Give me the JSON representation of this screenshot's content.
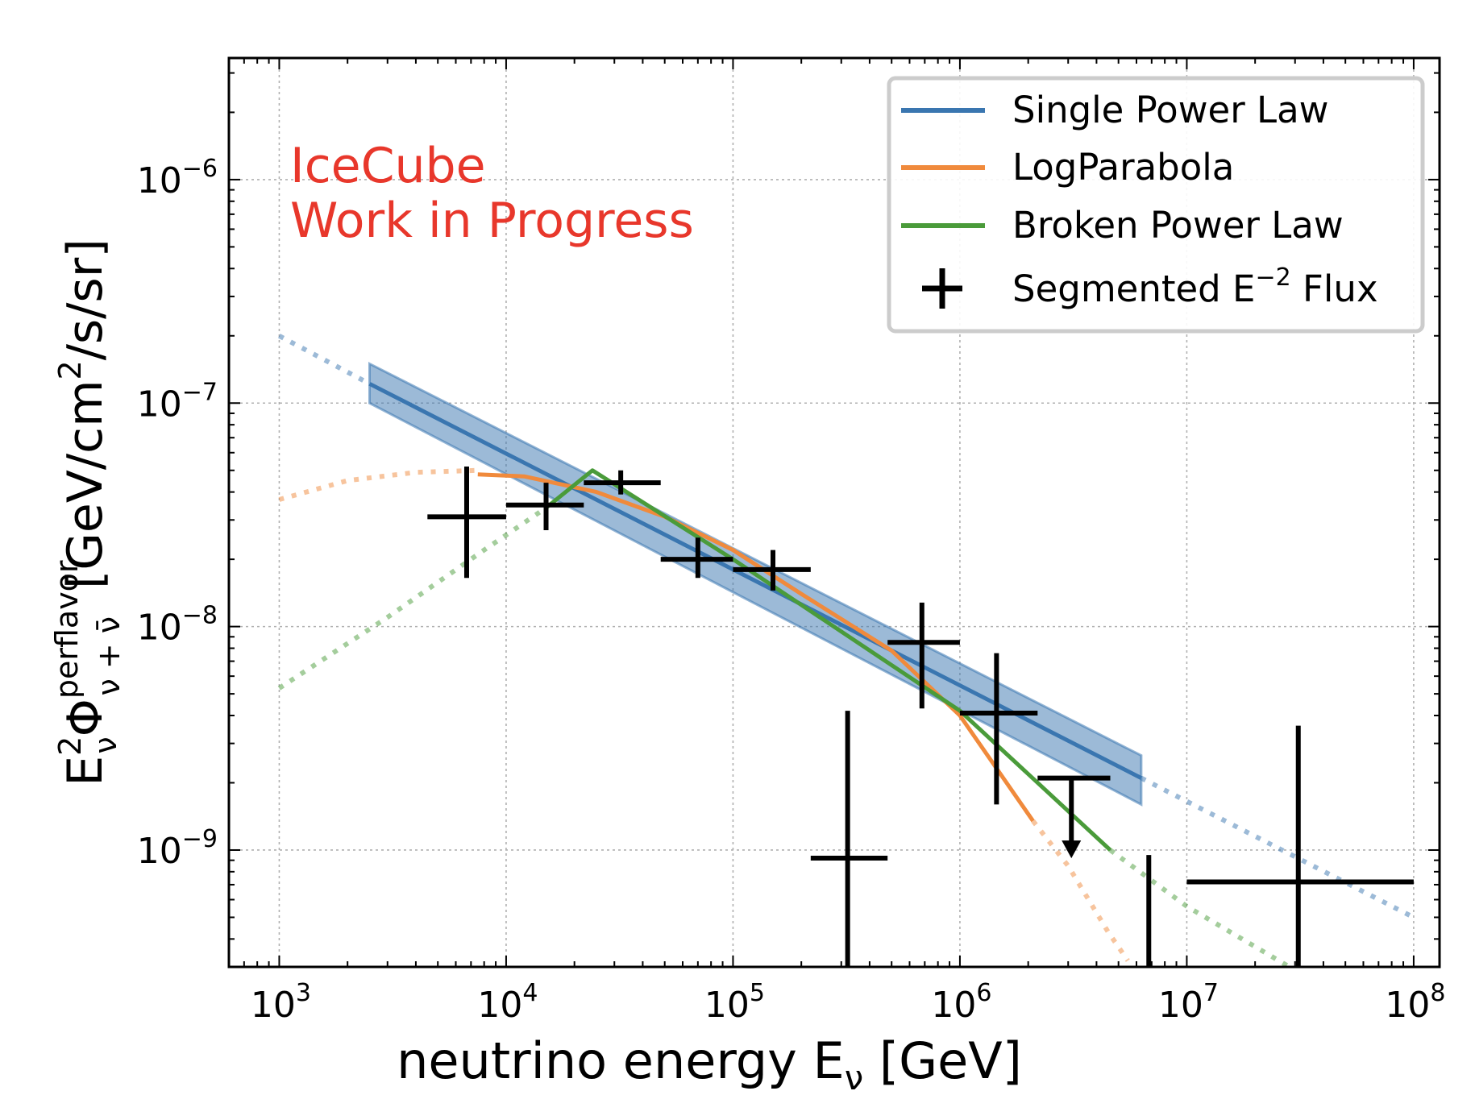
{
  "chart_data": {
    "type": "line",
    "xscale": "log",
    "yscale": "log",
    "xlim": [
      600,
      130000000
    ],
    "ylim": [
      3e-10,
      3.5e-06
    ],
    "grid": true,
    "xlabel_main": "neutrino energy E",
    "xlabel_sub": "ν",
    "xlabel_unit": "[GeV]",
    "ylabel_parts": {
      "e": "E",
      "e_sup": "2",
      "e_sub": "ν",
      "phi": "Φ",
      "phi_sup": "perflavor",
      "phi_sub": "ν + ν̄",
      "unit_a": "[GeV/cm",
      "unit_sup": "2",
      "unit_b": "/s/sr]"
    },
    "xticks": [
      {
        "value": 1000,
        "base": "10",
        "exp": "3"
      },
      {
        "value": 10000,
        "base": "10",
        "exp": "4"
      },
      {
        "value": 100000,
        "base": "10",
        "exp": "5"
      },
      {
        "value": 1000000,
        "base": "10",
        "exp": "6"
      },
      {
        "value": 10000000,
        "base": "10",
        "exp": "7"
      },
      {
        "value": 100000000,
        "base": "10",
        "exp": "8"
      }
    ],
    "yticks": [
      {
        "value": 1e-09,
        "base": "10",
        "exp": "−9"
      },
      {
        "value": 1e-08,
        "base": "10",
        "exp": "−8"
      },
      {
        "value": 1e-07,
        "base": "10",
        "exp": "−7"
      },
      {
        "value": 1e-06,
        "base": "10",
        "exp": "−6"
      }
    ],
    "annotation": {
      "line1": "IceCube",
      "line2": "Work in Progress",
      "color": "#e8372b"
    },
    "legend": {
      "position": "top-right",
      "entries": [
        {
          "label": "Single Power Law",
          "color": "#3a76b0",
          "kind": "line"
        },
        {
          "label": "LogParabola",
          "color": "#f08a3c",
          "kind": "line"
        },
        {
          "label": "Broken Power Law",
          "color": "#4a9b3a",
          "kind": "line"
        },
        {
          "label": "Segmented E",
          "label_sup": "−2",
          "label_tail": " Flux",
          "color": "#000000",
          "kind": "cross"
        }
      ]
    },
    "series": [
      {
        "name": "Single Power Law",
        "color": "#3a76b0",
        "extrapolated": [
          [
            1000,
            2e-07
          ],
          [
            2500,
            1.22e-07
          ]
        ],
        "fitted": [
          [
            2500,
            1.22e-07
          ],
          [
            6300000,
            2.1e-09
          ]
        ],
        "extrapolated_high": [
          [
            6300000,
            2.1e-09
          ],
          [
            100000000,
            5e-10
          ]
        ],
        "band_upper": [
          [
            2500,
            1.5e-07
          ],
          [
            6300000,
            2.65e-09
          ]
        ],
        "band_lower": [
          [
            2500,
            1e-07
          ],
          [
            6300000,
            1.6e-09
          ]
        ]
      },
      {
        "name": "LogParabola",
        "color": "#f08a3c",
        "extrapolated": [
          [
            1000,
            3.7e-08
          ],
          [
            2000,
            4.5e-08
          ],
          [
            4000,
            4.9e-08
          ],
          [
            7500,
            5e-08
          ]
        ],
        "fitted": [
          [
            7500,
            4.8e-08
          ],
          [
            12000,
            4.7e-08
          ],
          [
            25000,
            4e-08
          ],
          [
            50000,
            3.1e-08
          ],
          [
            100000,
            2.2e-08
          ],
          [
            200000,
            1.4e-08
          ],
          [
            500000,
            7.8e-09
          ],
          [
            1000000,
            4e-09
          ],
          [
            2100000,
            1.35e-09
          ]
        ],
        "extrapolated_high": [
          [
            2100000,
            1.35e-09
          ],
          [
            3000000,
            8.5e-10
          ],
          [
            4500000,
            4.3e-10
          ],
          [
            5500000,
            3.2e-10
          ]
        ]
      },
      {
        "name": "Broken Power Law",
        "color": "#4a9b3a",
        "extrapolated": [
          [
            1000,
            5.3e-09
          ],
          [
            3000,
            1.1e-08
          ],
          [
            8000,
            2.2e-08
          ],
          [
            15000,
            3.4e-08
          ]
        ],
        "fitted": [
          [
            15000,
            3.4e-08
          ],
          [
            24000,
            5e-08
          ],
          [
            100000,
            2e-08
          ],
          [
            1000000,
            4.2e-09
          ],
          [
            4600000,
            1e-09
          ]
        ],
        "extrapolated_high": [
          [
            4600000,
            1e-09
          ],
          [
            10000000,
            5.6e-10
          ],
          [
            30000000,
            2.9e-10
          ]
        ]
      }
    ],
    "segmented_flux": [
      {
        "x": 6700,
        "xlo": 4500,
        "xhi": 10000,
        "y": 3.1e-08,
        "ylo": 1.65e-08,
        "yhi": 5.2e-08
      },
      {
        "x": 15000,
        "xlo": 10000,
        "xhi": 22000,
        "y": 3.5e-08,
        "ylo": 2.7e-08,
        "yhi": 4.4e-08
      },
      {
        "x": 32000,
        "xlo": 22000,
        "xhi": 48000,
        "y": 4.4e-08,
        "ylo": 3.9e-08,
        "yhi": 5e-08
      },
      {
        "x": 70000,
        "xlo": 48000,
        "xhi": 100000,
        "y": 2e-08,
        "ylo": 1.65e-08,
        "yhi": 2.5e-08
      },
      {
        "x": 150000,
        "xlo": 100000,
        "xhi": 220000,
        "y": 1.8e-08,
        "ylo": 1.45e-08,
        "yhi": 2.2e-08
      },
      {
        "x": 320000,
        "xlo": 220000,
        "xhi": 480000,
        "y": 9.2e-10,
        "ylo": 3e-10,
        "yhi": 4.2e-09
      },
      {
        "x": 680000,
        "xlo": 480000,
        "xhi": 1000000,
        "y": 8.5e-09,
        "ylo": 4.3e-09,
        "yhi": 1.28e-08
      },
      {
        "x": 1450000,
        "xlo": 1000000,
        "xhi": 2200000,
        "y": 4.1e-09,
        "ylo": 1.6e-09,
        "yhi": 7.6e-09
      },
      {
        "x": 6800000,
        "xlo": 6800000,
        "xhi": 6800000,
        "y": 3e-10,
        "ylo": 3e-10,
        "yhi": 9.5e-10
      },
      {
        "x": 31000000,
        "xlo": 10000000,
        "xhi": 100000000,
        "y": 7.2e-10,
        "ylo": 3e-10,
        "yhi": 3.6e-09
      }
    ],
    "upper_limits": [
      {
        "x": 3100000,
        "xlo": 2200000,
        "xhi": 4600000,
        "y": 2.1e-09,
        "arrow_to": 9.5e-10
      }
    ]
  }
}
